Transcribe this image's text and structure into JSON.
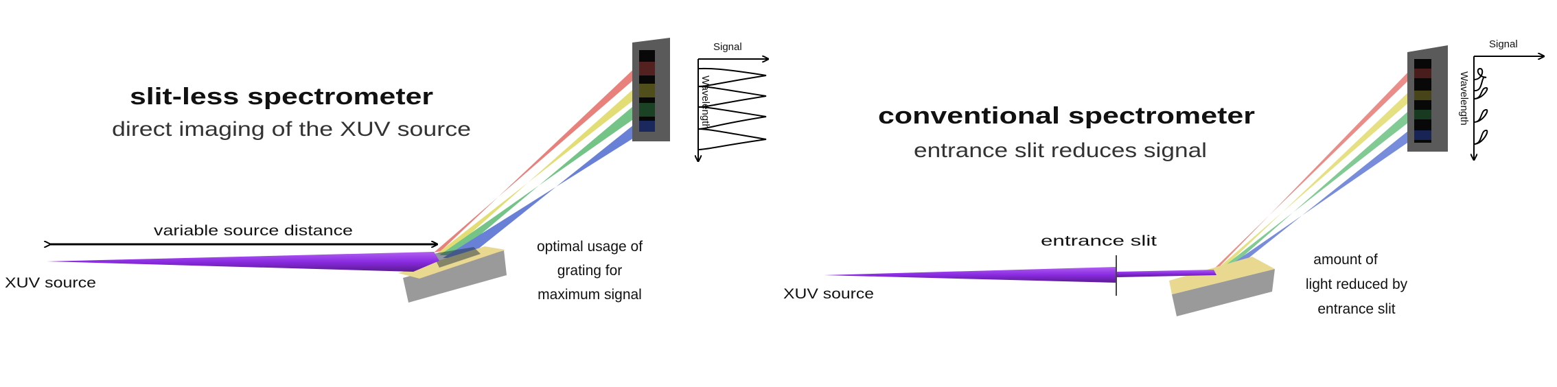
{
  "left_panel": {
    "title": "slit-less spectrometer",
    "subtitle": "direct imaging of the XUV source",
    "source_label": "XUV source",
    "distance_label": "variable source distance",
    "grating_note": [
      "optimal usage of",
      "grating for",
      "maximum signal"
    ],
    "signal_axis": "Signal",
    "wavelength_axis": "Wavelength"
  },
  "right_panel": {
    "title": "conventional spectrometer",
    "subtitle": "entrance slit reduces signal",
    "source_label": "XUV source",
    "slit_label": "entrance slit",
    "grating_note": [
      "amount of",
      "light reduced by",
      "entrance slit"
    ],
    "signal_axis": "Signal",
    "wavelength_axis": "Wavelength"
  },
  "colors": {
    "xuv_beam": "#8a2be2",
    "beam_red": "#e0504a",
    "beam_yellow": "#d8d040",
    "beam_green": "#3fae5a",
    "beam_blue": "#3050c8",
    "grating_top": "#e8d890",
    "grating_side": "#9a9a9a",
    "detector": "#555555"
  }
}
